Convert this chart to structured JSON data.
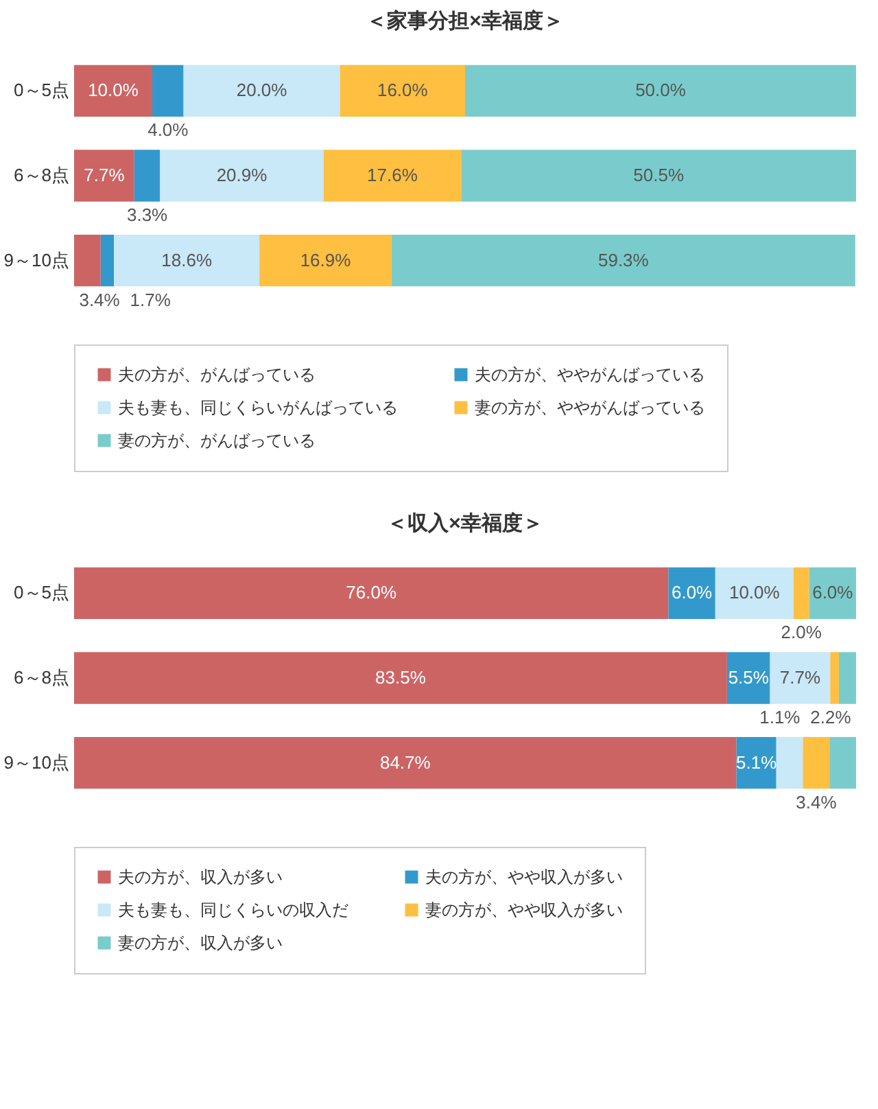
{
  "chart_data": [
    {
      "type": "bar",
      "title": "＜家事分担×幸福度＞",
      "orientation": "horizontal",
      "stacked": true,
      "categories": [
        "0～5点",
        "6～8点",
        "9～10点"
      ],
      "xlim": [
        0,
        100
      ],
      "tick_labels": "y",
      "grid": false,
      "legend": "bottom",
      "series": [
        {
          "name": "夫の方が、がんばっている",
          "color": "#cd6464",
          "values": [
            10.0,
            7.7,
            3.4
          ],
          "value_labels": [
            "10.0%",
            "7.7%",
            "3.4%"
          ]
        },
        {
          "name": "夫の方が、ややがんばっている",
          "color": "#3399cc",
          "values": [
            4.0,
            3.3,
            1.7
          ],
          "value_labels": [
            "4.0%",
            "3.3%",
            "1.7%"
          ]
        },
        {
          "name": "夫も妻も、同じくらいがんばっている",
          "color": "#c9e8f8",
          "values": [
            20.0,
            20.9,
            18.6
          ],
          "value_labels": [
            "20.0%",
            "20.9%",
            "18.6%"
          ]
        },
        {
          "name": "妻の方が、ややがんばっている",
          "color": "#ffbf40",
          "values": [
            16.0,
            17.6,
            16.9
          ],
          "value_labels": [
            "16.0%",
            "17.6%",
            "16.9%"
          ]
        },
        {
          "name": "妻の方が、がんばっている",
          "color": "#7acccc",
          "values": [
            50.0,
            50.5,
            59.3
          ],
          "value_labels": [
            "50.0%",
            "50.5%",
            "59.3%"
          ]
        }
      ]
    },
    {
      "type": "bar",
      "title": "＜収入×幸福度＞",
      "orientation": "horizontal",
      "stacked": true,
      "categories": [
        "0～5点",
        "6～8点",
        "9～10点"
      ],
      "xlim": [
        0,
        100
      ],
      "tick_labels": "y",
      "grid": false,
      "legend": "bottom",
      "series": [
        {
          "name": "夫の方が、収入が多い",
          "color": "#cd6464",
          "values": [
            76.0,
            83.5,
            84.7
          ],
          "value_labels": [
            "76.0%",
            "83.5%",
            "84.7%"
          ]
        },
        {
          "name": "夫の方が、やや収入が多い",
          "color": "#3399cc",
          "values": [
            6.0,
            5.5,
            5.1
          ],
          "value_labels": [
            "6.0%",
            "5.5%",
            "5.1%"
          ]
        },
        {
          "name": "夫も妻も、同じくらいの収入だ",
          "color": "#c9e8f8",
          "values": [
            10.0,
            7.7,
            3.4
          ],
          "value_labels": [
            "10.0%",
            "7.7%",
            null
          ]
        },
        {
          "name": "妻の方が、やや収入が多い",
          "color": "#ffbf40",
          "values": [
            2.0,
            1.1,
            3.4
          ],
          "value_labels": [
            "2.0%",
            "1.1%",
            "3.4%"
          ]
        },
        {
          "name": "妻の方が、収入が多い",
          "color": "#7acccc",
          "values": [
            6.0,
            2.2,
            3.4
          ],
          "value_labels": [
            "6.0%",
            "2.2%",
            null
          ]
        }
      ]
    }
  ]
}
